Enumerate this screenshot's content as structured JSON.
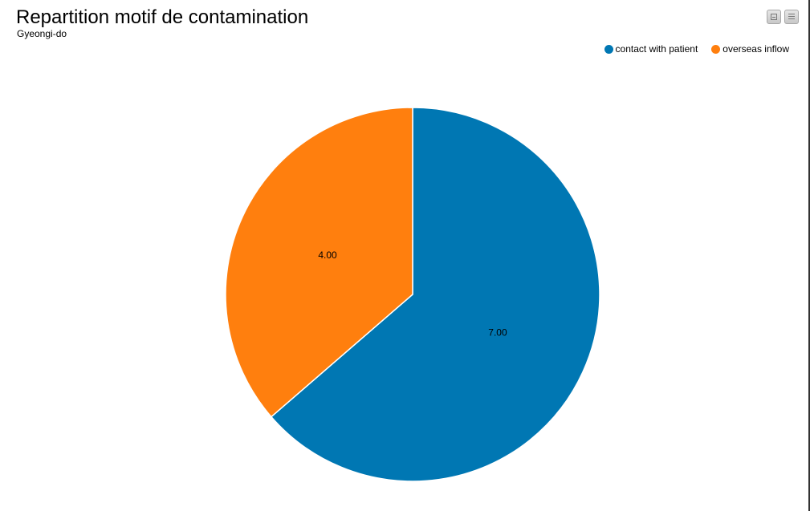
{
  "chart": {
    "title": "Repartition motif de contamination",
    "subtitle": "Gyeongi-do"
  },
  "toolbar": {
    "collapse_icon": "collapse-icon",
    "menu_icon": "menu-icon"
  },
  "chart_data": {
    "type": "pie",
    "title": "Repartition motif de contamination",
    "subtitle": "Gyeongi-do",
    "legend_position": "top-right",
    "slices": [
      {
        "name": "contact with patient",
        "value": 7,
        "label": "7.00",
        "color": "#0077b3"
      },
      {
        "name": "overseas inflow",
        "value": 4,
        "label": "4.00",
        "color": "#ff7f0e"
      }
    ]
  }
}
